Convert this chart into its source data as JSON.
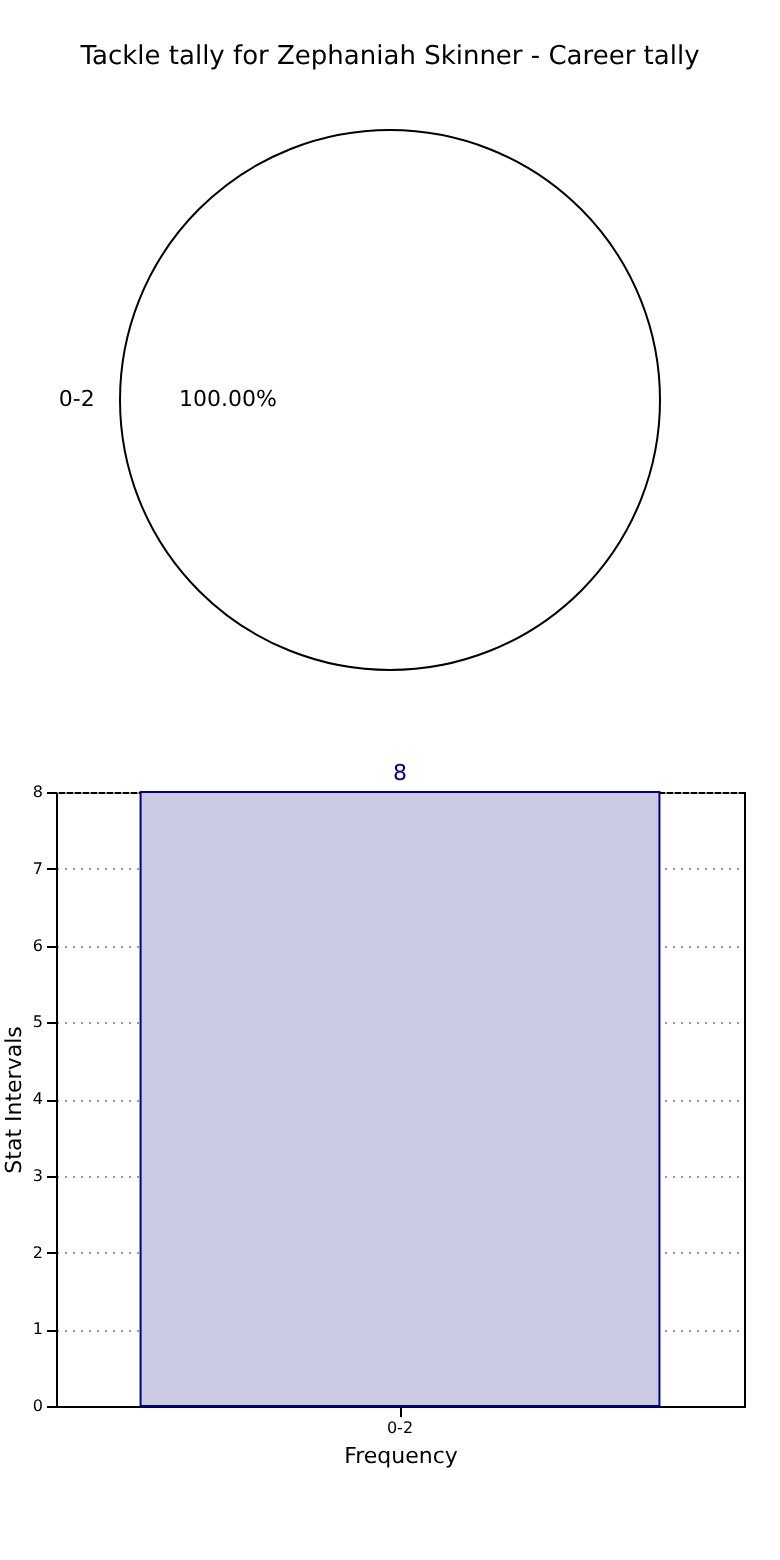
{
  "chart_data": [
    {
      "type": "pie",
      "title": "Tackle tally for Zephaniah Skinner - Career tally",
      "categories": [
        "0-2"
      ],
      "values": [
        100
      ],
      "colors": [
        "#ffffff"
      ],
      "value_labels": [
        "100.00%"
      ]
    },
    {
      "type": "bar",
      "categories": [
        "0-2"
      ],
      "values": [
        8
      ],
      "color": "#cbcbe3",
      "xlabel": "Frequency",
      "ylabel": "Stat Intervals",
      "ylim": [
        0,
        8
      ],
      "yticks": [
        0,
        1,
        2,
        3,
        4,
        5,
        6,
        7,
        8
      ],
      "grid": true,
      "data_labels": true
    }
  ]
}
